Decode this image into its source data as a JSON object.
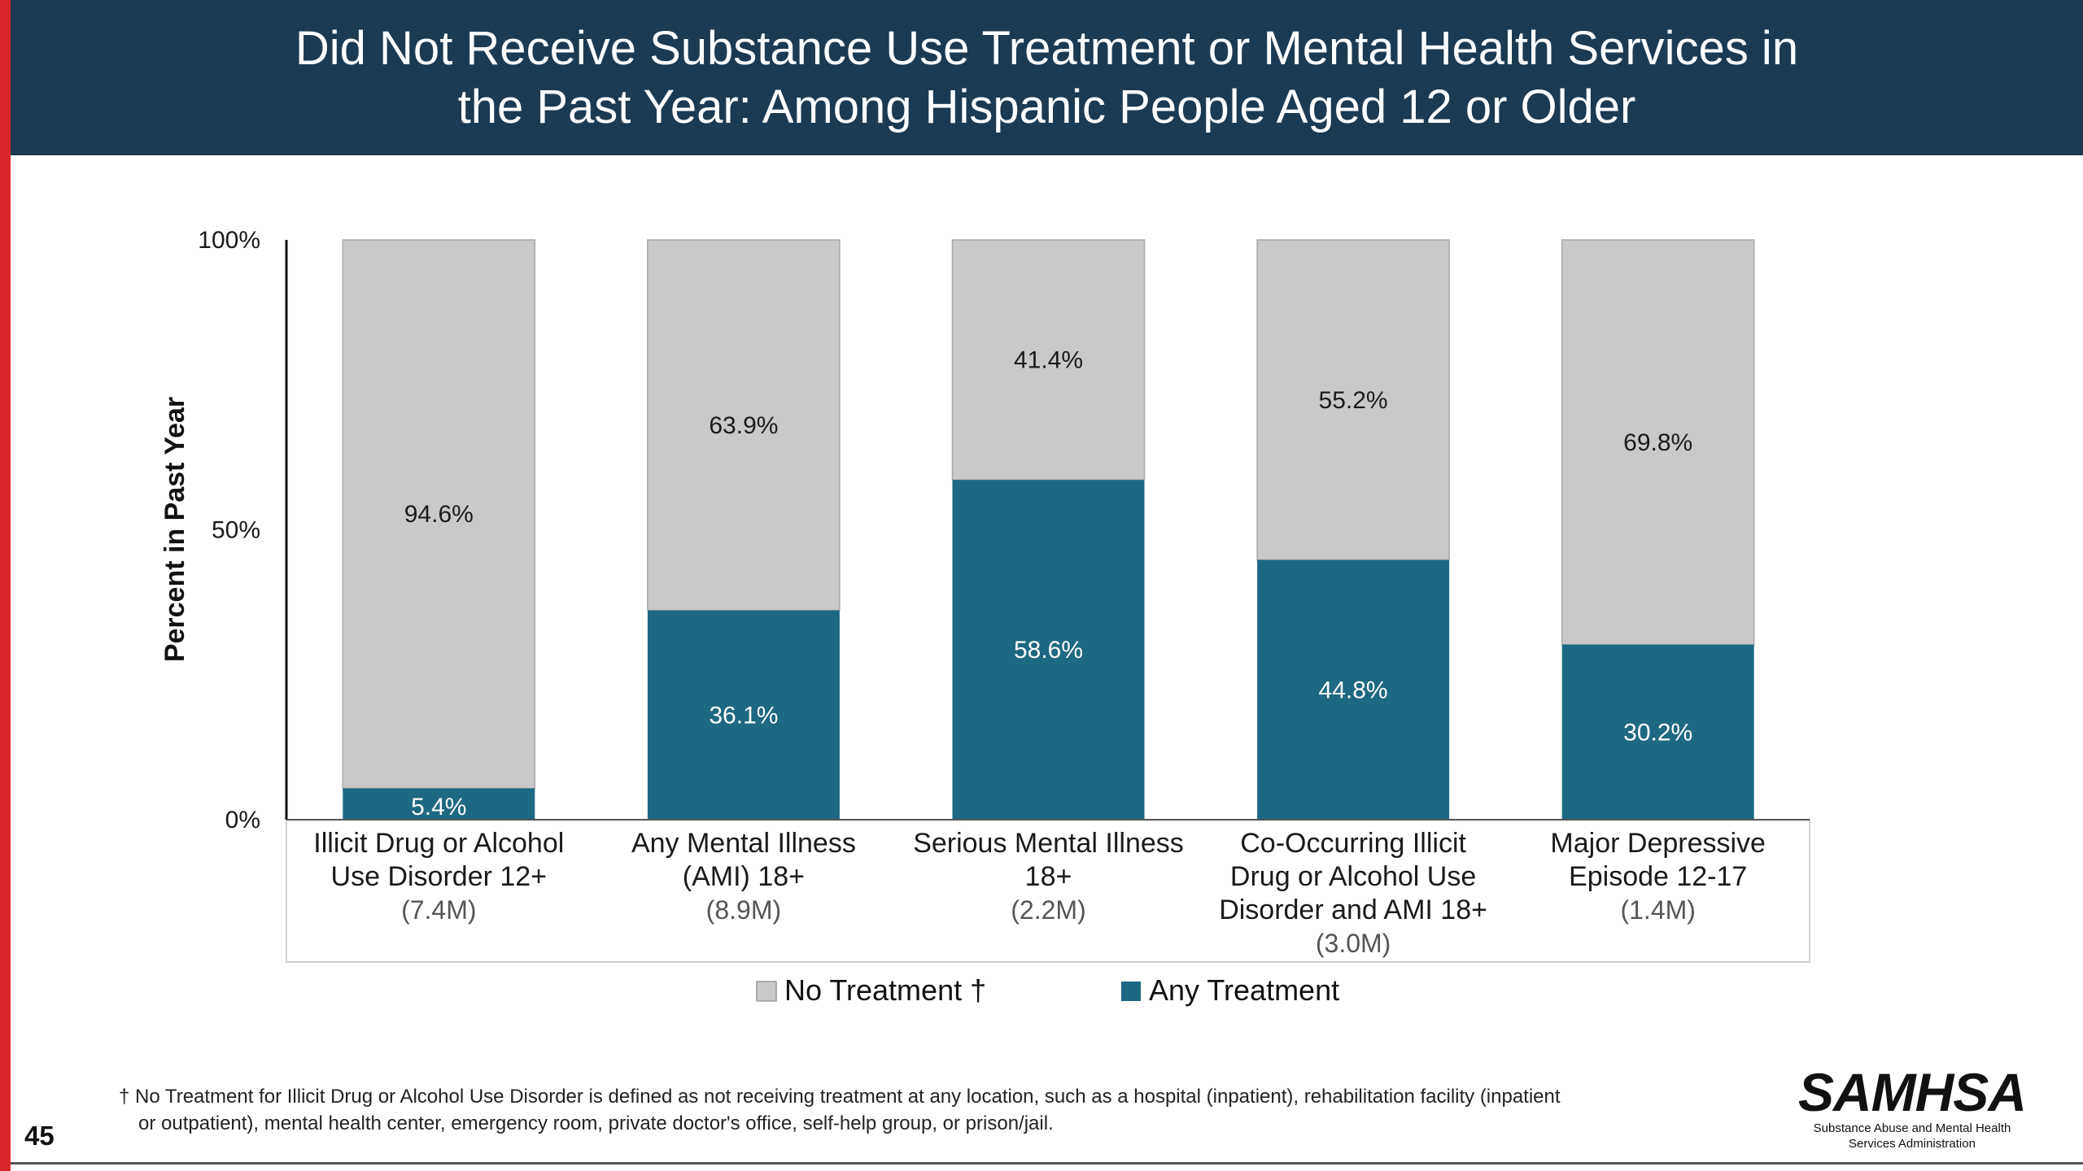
{
  "slide": {
    "title_line1": "Did Not Receive Substance Use Treatment or Mental Health Services in",
    "title_line2": "the Past Year: Among Hispanic People Aged 12 or Older",
    "page_number": "45",
    "footnote_line1": "† No Treatment for Illicit Drug or Alcohol Use Disorder is defined as not receiving treatment at any location, such as a hospital (inpatient), rehabilitation facility (inpatient",
    "footnote_line2": "or outpatient), mental health center, emergency room, private doctor's office, self-help group, or prison/jail.",
    "logo_text": "SAMHSA",
    "logo_subtitle_line1": "Substance Abuse and Mental Health",
    "logo_subtitle_line2": "Services Administration"
  },
  "colors": {
    "title_bar": "#1c3a52",
    "accent": "#d9262a",
    "any_treatment": "#1d6883",
    "no_treatment": "#c9c9c9"
  },
  "chart_data": {
    "type": "bar",
    "stacked": true,
    "ylabel": "Percent in Past Year",
    "ylim": [
      0,
      100
    ],
    "yticks": [
      "0%",
      "50%",
      "100%"
    ],
    "categories": [
      {
        "lines": [
          "Illicit Drug or Alcohol",
          "Use Disorder 12+"
        ],
        "population": "(7.4M)"
      },
      {
        "lines": [
          "Any Mental Illness",
          "(AMI) 18+"
        ],
        "population": "(8.9M)"
      },
      {
        "lines": [
          "Serious Mental Illness",
          "18+"
        ],
        "population": "(2.2M)"
      },
      {
        "lines": [
          "Co-Occurring Illicit",
          "Drug or Alcohol Use",
          "Disorder and AMI 18+"
        ],
        "population": "(3.0M)"
      },
      {
        "lines": [
          "Major Depressive",
          "Episode 12-17"
        ],
        "population": "(1.4M)"
      }
    ],
    "series": [
      {
        "name": "Any Treatment",
        "values": [
          5.4,
          36.1,
          58.6,
          44.8,
          30.2
        ],
        "labels": [
          "5.4%",
          "36.1%",
          "58.6%",
          "44.8%",
          "30.2%"
        ]
      },
      {
        "name": "No Treatment †",
        "values": [
          94.6,
          63.9,
          41.4,
          55.2,
          69.8
        ],
        "labels": [
          "94.6%",
          "63.9%",
          "41.4%",
          "55.2%",
          "69.8%"
        ]
      }
    ],
    "legend": [
      {
        "label": "No Treatment †",
        "color_key": "no_treatment"
      },
      {
        "label": "Any Treatment",
        "color_key": "any_treatment"
      }
    ],
    "legend_position": "bottom",
    "grid": false
  }
}
